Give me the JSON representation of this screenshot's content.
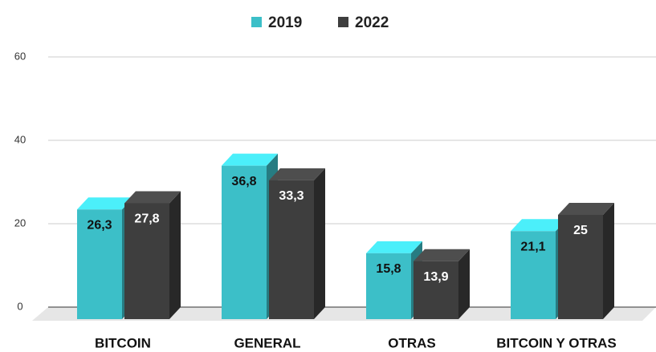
{
  "chart_data": {
    "type": "bar3d",
    "categories": [
      "BITCOIN",
      "GENERAL",
      "OTRAS",
      "BITCOIN Y OTRAS"
    ],
    "series": [
      {
        "name": "2019",
        "color": "#3cbfc8",
        "values": [
          26.3,
          36.8,
          15.8,
          21.1
        ],
        "value_labels": [
          "26,3",
          "36,8",
          "15,8",
          "21,1"
        ]
      },
      {
        "name": "2022",
        "color": "#3e3e3e",
        "values": [
          27.8,
          33.3,
          13.9,
          25
        ],
        "value_labels": [
          "27,8",
          "33,3",
          "13,9",
          "25"
        ]
      }
    ],
    "ylim": [
      0,
      60
    ],
    "yticks": [
      0,
      20,
      40,
      60
    ],
    "grid": true,
    "legend": "top"
  }
}
